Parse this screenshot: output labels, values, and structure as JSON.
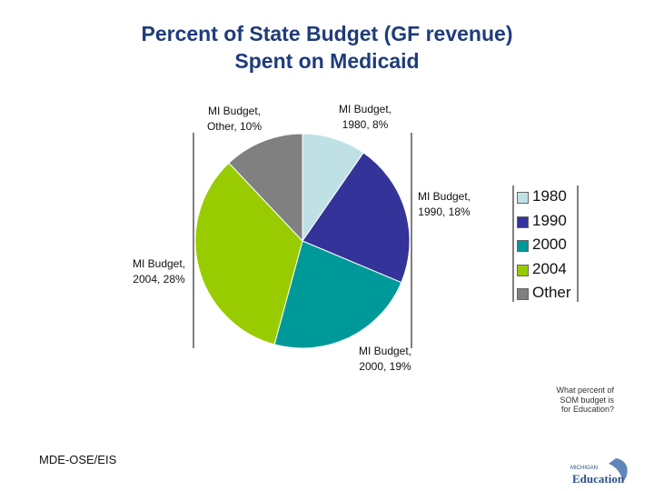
{
  "header": {
    "title_line1": "Percent of State Budget (GF revenue)",
    "title_line2": "Spent on Medicaid"
  },
  "chart_data": {
    "type": "pie",
    "title": "Percent of State Budget (GF revenue) Spent on Medicaid",
    "slices": [
      {
        "legend": "1980",
        "label_line1": "MI Budget,",
        "label_line2": "1980, 8%",
        "value": 8,
        "color": "#bfe1e6"
      },
      {
        "legend": "1990",
        "label_line1": "MI Budget,",
        "label_line2": "1990, 18%",
        "value": 18,
        "color": "#333399"
      },
      {
        "legend": "2000",
        "label_line1": "MI Budget,",
        "label_line2": "2000, 19%",
        "value": 19,
        "color": "#009999"
      },
      {
        "legend": "2004",
        "label_line1": "MI Budget,",
        "label_line2": "2004, 28%",
        "value": 28,
        "color": "#99cc00"
      },
      {
        "legend": "Other",
        "label_line1": "MI Budget,",
        "label_line2": "Other, 10%",
        "value": 10,
        "color": "#808080"
      }
    ],
    "legend_position": "right"
  },
  "annotation": {
    "question_line1": "What percent of",
    "question_line2": "SOM budget is",
    "question_line3": "for Education?"
  },
  "footer": {
    "text": "MDE-OSE/EIS"
  },
  "logo": {
    "line1": "MICHIGAN",
    "line2": "Education",
    "icon": "michigan-education-logo"
  }
}
